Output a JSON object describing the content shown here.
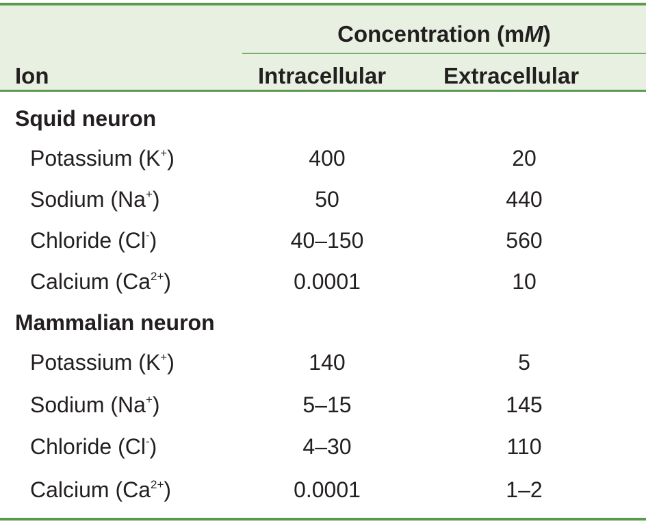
{
  "header": {
    "span_label_prefix": "Concentration (m",
    "span_label_unit": "M",
    "span_label_suffix": ")",
    "col_ion": "Ion",
    "col_intracellular": "Intracellular",
    "col_extracellular": "Extracellular"
  },
  "colors": {
    "rule": "#5a9a4e",
    "header_bg": "#e8f0e1",
    "text": "#231f20"
  },
  "groups": [
    {
      "label": "Squid neuron",
      "rows": [
        {
          "ion": "Potassium (K",
          "charge": "+",
          "close": ")",
          "intracellular": "400",
          "extracellular": "20"
        },
        {
          "ion": "Sodium (Na",
          "charge": "+",
          "close": ")",
          "intracellular": "50",
          "extracellular": "440"
        },
        {
          "ion": "Chloride (Cl",
          "charge": "-",
          "close": ")",
          "intracellular": "40–150",
          "extracellular": "560"
        },
        {
          "ion": "Calcium (Ca",
          "charge": "2+",
          "close": ")",
          "intracellular": "0.0001",
          "extracellular": "10"
        }
      ]
    },
    {
      "label": "Mammalian neuron",
      "rows": [
        {
          "ion": "Potassium (K",
          "charge": "+",
          "close": ")",
          "intracellular": "140",
          "extracellular": "5"
        },
        {
          "ion": "Sodium (Na",
          "charge": "+",
          "close": ")",
          "intracellular": "5–15",
          "extracellular": "145"
        },
        {
          "ion": "Chloride (Cl",
          "charge": "-",
          "close": ")",
          "intracellular": "4–30",
          "extracellular": "110"
        },
        {
          "ion": "Calcium (Ca",
          "charge": "2+",
          "close": ")",
          "intracellular": "0.0001",
          "extracellular": "1–2"
        }
      ]
    }
  ]
}
